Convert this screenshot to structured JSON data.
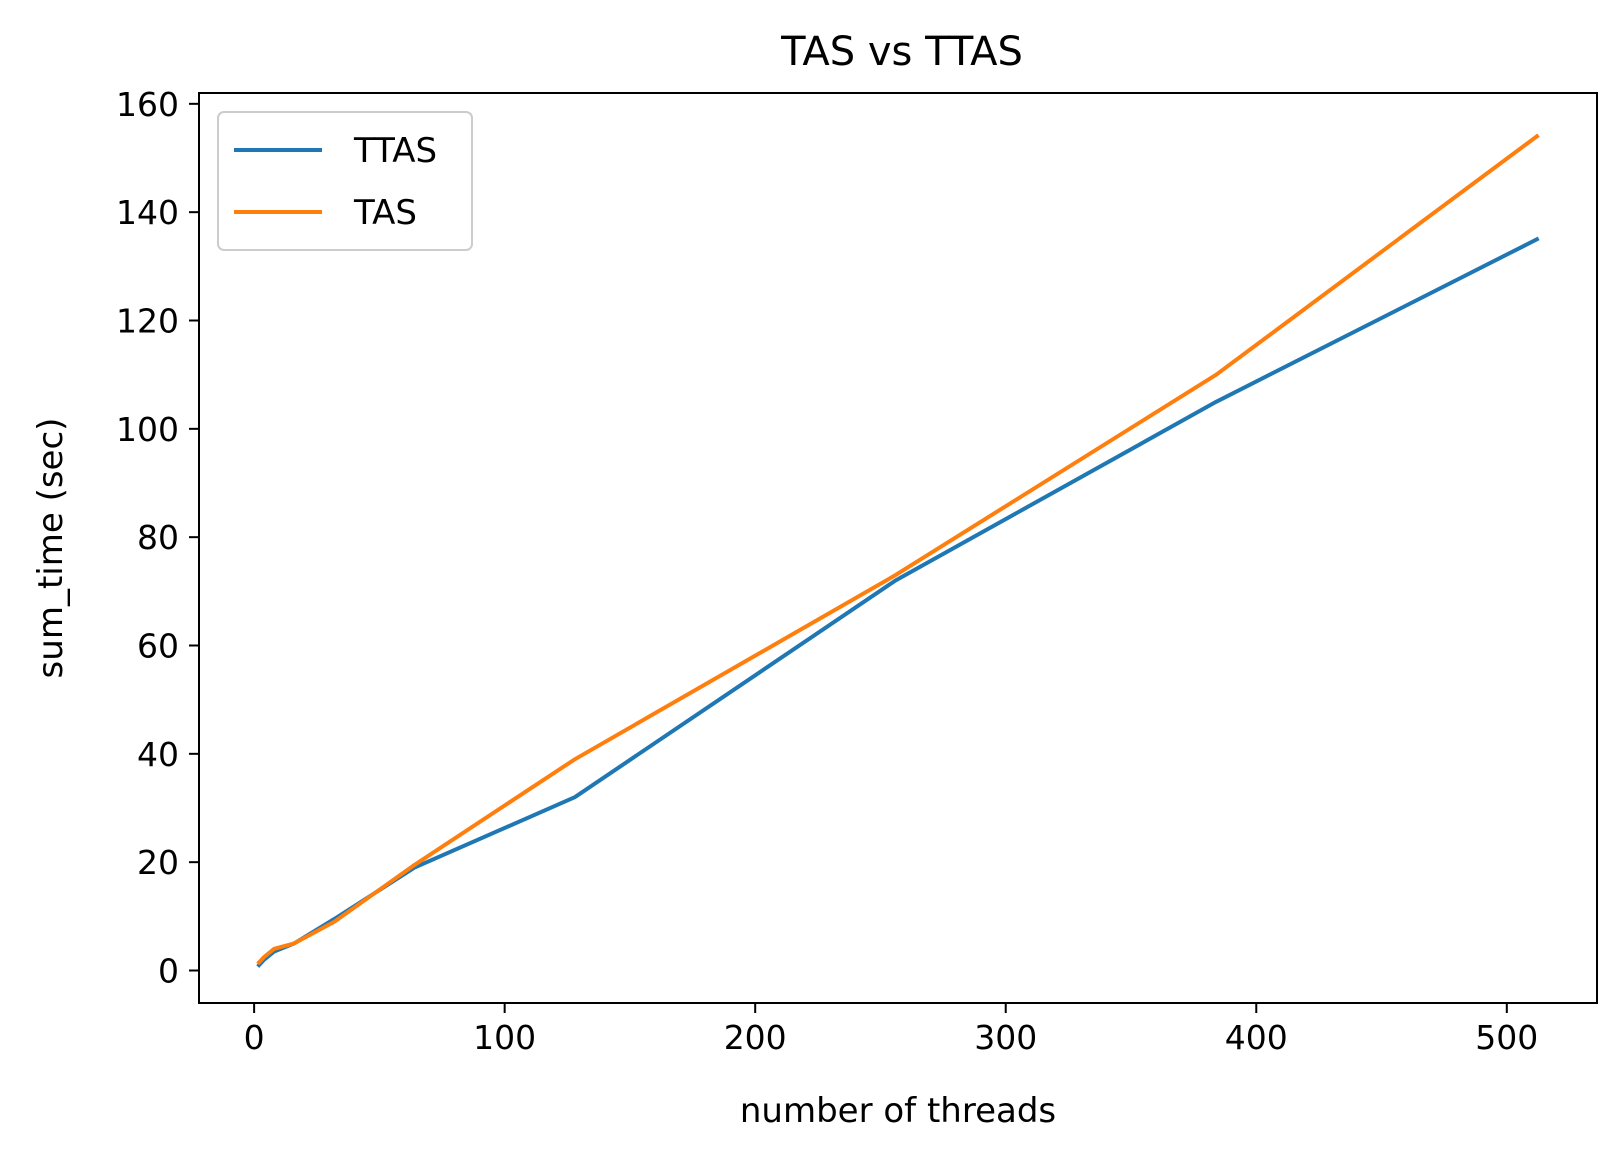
{
  "chart_data": {
    "type": "line",
    "title": "TAS vs TTAS",
    "xlabel": "number of threads",
    "ylabel": "sum_time (sec)",
    "xlim": [
      -22,
      536
    ],
    "ylim": [
      -6,
      162
    ],
    "x_ticks": [
      0,
      100,
      200,
      300,
      400,
      500
    ],
    "y_ticks": [
      0,
      20,
      40,
      60,
      80,
      100,
      120,
      140,
      160
    ],
    "grid": false,
    "legend_position": "top-left",
    "series": [
      {
        "name": "TTAS",
        "color": "#1f77b4",
        "x": [
          2,
          4,
          8,
          16,
          32,
          64,
          128,
          256,
          384,
          512
        ],
        "y": [
          1.0,
          2.0,
          3.5,
          5.0,
          9.5,
          19.0,
          32.0,
          72.0,
          105.0,
          135.0
        ]
      },
      {
        "name": "TAS",
        "color": "#ff7f0e",
        "x": [
          2,
          4,
          8,
          16,
          32,
          64,
          128,
          256,
          384,
          512
        ],
        "y": [
          1.5,
          2.5,
          4.0,
          5.0,
          9.0,
          19.5,
          39.0,
          73.0,
          110.0,
          154.0
        ]
      }
    ]
  }
}
